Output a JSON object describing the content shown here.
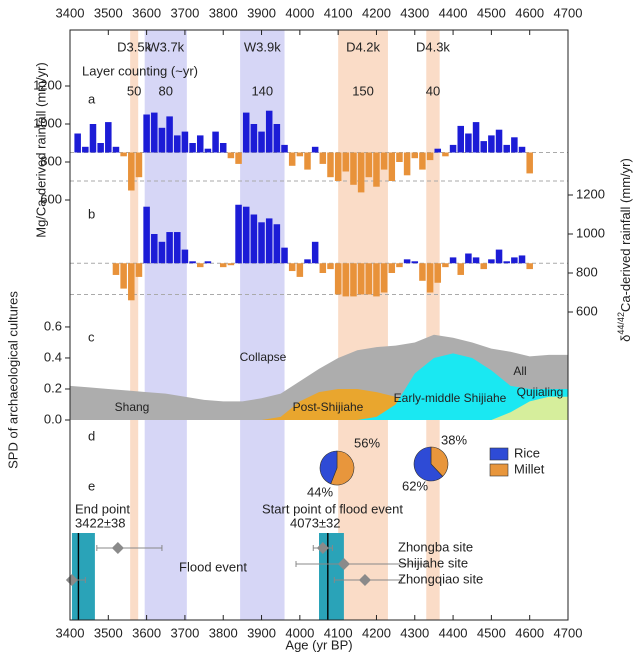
{
  "chart_data": {
    "type": "stacked-panels",
    "x_label": "Age (yr BP)",
    "xlim": [
      3400,
      4700
    ],
    "xticks": [
      3400,
      3500,
      3600,
      3700,
      3800,
      3900,
      4000,
      4100,
      4200,
      4300,
      4400,
      4500,
      4600,
      4700
    ],
    "bands": [
      {
        "label": "D3.5k",
        "range": [
          3557,
          3578
        ],
        "color": "#f9d6bd",
        "label_color": "#e8923a"
      },
      {
        "label": "W3.7k",
        "range": [
          3595,
          3705
        ],
        "color": "#cfcff5",
        "label_color": "#4a4acb"
      },
      {
        "label": "W3.9k",
        "range": [
          3844,
          3960
        ],
        "color": "#cfcff5",
        "label_color": "#4a4acb"
      },
      {
        "label": "D4.2k",
        "range": [
          4100,
          4230
        ],
        "color": "#f9d6bd",
        "label_color": "#e8923a"
      },
      {
        "label": "D4.3k",
        "range": [
          4330,
          4365
        ],
        "color": "#f9d6bd",
        "label_color": "#e8923a"
      }
    ],
    "layer_counting": {
      "title": "Layer counting (~yr)",
      "counts": [
        50,
        80,
        140,
        150,
        40
      ]
    },
    "panels": [
      {
        "type": "bar",
        "label": "a",
        "axis_side": "left",
        "y_label": "Mg/Ca-derived rainfall (mm/yr)",
        "ylim": [
          520,
          1340
        ],
        "yticks": [
          600,
          800,
          1000,
          1200
        ],
        "reference_lines": [
          850,
          700
        ],
        "color_above": "#1c1cd6",
        "color_below": "#e8923a",
        "x": [
          3420,
          3440,
          3460,
          3480,
          3500,
          3520,
          3540,
          3560,
          3580,
          3600,
          3620,
          3640,
          3660,
          3680,
          3700,
          3720,
          3740,
          3760,
          3780,
          3800,
          3820,
          3840,
          3860,
          3880,
          3900,
          3920,
          3940,
          3960,
          3980,
          4000,
          4020,
          4040,
          4060,
          4080,
          4100,
          4120,
          4140,
          4160,
          4180,
          4200,
          4220,
          4240,
          4260,
          4280,
          4300,
          4320,
          4340,
          4360,
          4380,
          4400,
          4420,
          4440,
          4460,
          4480,
          4500,
          4520,
          4540,
          4560,
          4580,
          4600
        ],
        "values": [
          950,
          880,
          1000,
          900,
          1010,
          880,
          830,
          650,
          720,
          1050,
          1060,
          980,
          1040,
          940,
          960,
          900,
          940,
          870,
          960,
          900,
          820,
          790,
          1060,
          1000,
          960,
          1070,
          1000,
          890,
          780,
          830,
          760,
          880,
          790,
          720,
          700,
          750,
          680,
          640,
          720,
          670,
          760,
          700,
          800,
          730,
          820,
          760,
          810,
          870,
          830,
          890,
          990,
          950,
          1010,
          910,
          940,
          970,
          890,
          930,
          880,
          740
        ]
      },
      {
        "type": "bar",
        "label": "b",
        "axis_side": "right",
        "y_label": {
          "prefix": "δ",
          "sup": "44/42",
          "text": "Ca-derived rainfall (mm/yr)"
        },
        "ylim": [
          520,
          1300
        ],
        "yticks": [
          600,
          800,
          1000,
          1200
        ],
        "reference_lines": [
          850,
          690
        ],
        "color_above": "#1c1cd6",
        "color_below": "#e8923a",
        "x": [
          3520,
          3540,
          3560,
          3580,
          3600,
          3620,
          3640,
          3660,
          3680,
          3700,
          3720,
          3740,
          3760,
          3780,
          3800,
          3820,
          3840,
          3860,
          3880,
          3900,
          3920,
          3940,
          3960,
          3980,
          4000,
          4020,
          4040,
          4060,
          4080,
          4100,
          4120,
          4140,
          4160,
          4180,
          4200,
          4220,
          4240,
          4260,
          4280,
          4300,
          4320,
          4340,
          4360,
          4380,
          4400,
          4420,
          4440,
          4460,
          4480,
          4500,
          4520,
          4540,
          4560,
          4580,
          4600
        ],
        "values": [
          790,
          720,
          660,
          780,
          1140,
          1000,
          960,
          1010,
          1010,
          920,
          860,
          830,
          860,
          850,
          830,
          840,
          1150,
          1140,
          1100,
          1060,
          1080,
          1050,
          930,
          810,
          780,
          870,
          960,
          800,
          820,
          690,
          680,
          680,
          690,
          690,
          680,
          700,
          800,
          830,
          870,
          860,
          760,
          700,
          750,
          830,
          880,
          790,
          900,
          880,
          820,
          870,
          920,
          860,
          880,
          890,
          820
        ]
      },
      {
        "type": "area",
        "label": "c",
        "axis_side": "left",
        "y_label": "SPD of archaeological cultures",
        "ylim": [
          0,
          0.65
        ],
        "yticks": [
          {
            "value": 0,
            "label": "0.0"
          },
          0.2,
          0.4,
          0.6
        ],
        "x": [
          3400,
          3450,
          3500,
          3550,
          3600,
          3650,
          3700,
          3750,
          3800,
          3850,
          3900,
          3950,
          4000,
          4050,
          4100,
          4150,
          4200,
          4250,
          4300,
          4350,
          4400,
          4450,
          4500,
          4550,
          4600,
          4650,
          4700
        ],
        "series": [
          {
            "name": "All",
            "color": "#adadad",
            "values": [
              0.22,
              0.21,
              0.2,
              0.19,
              0.18,
              0.17,
              0.15,
              0.13,
              0.12,
              0.12,
              0.14,
              0.17,
              0.25,
              0.33,
              0.4,
              0.45,
              0.47,
              0.48,
              0.5,
              0.55,
              0.53,
              0.5,
              0.46,
              0.44,
              0.41,
              0.42,
              0.42
            ]
          },
          {
            "name": "Post-Shijiahe",
            "color": "#e9a62e",
            "values": [
              0,
              0,
              0,
              0,
              0,
              0,
              0,
              0,
              0,
              0,
              0,
              0.02,
              0.12,
              0.18,
              0.2,
              0.2,
              0.18,
              0.15,
              0.08,
              0.02,
              0,
              0,
              0,
              0,
              0,
              0,
              0
            ]
          },
          {
            "name": "Early-middle Shijiahe",
            "color": "#1ae8f2",
            "values": [
              0,
              0,
              0,
              0,
              0,
              0,
              0,
              0,
              0,
              0,
              0,
              0,
              0,
              0,
              0,
              0,
              0.02,
              0.1,
              0.3,
              0.4,
              0.43,
              0.4,
              0.32,
              0.22,
              0.2,
              0.2,
              0.2
            ]
          },
          {
            "name": "Qujialing",
            "color": "#d6ee9c",
            "values": [
              0,
              0,
              0,
              0,
              0,
              0,
              0,
              0,
              0,
              0,
              0,
              0,
              0,
              0,
              0,
              0,
              0,
              0,
              0,
              0,
              0,
              0,
              0,
              0.05,
              0.12,
              0.15,
              0.15
            ]
          }
        ],
        "annotations": [
          {
            "text": "Shang",
            "color": "#222222"
          },
          {
            "text": "Collapse",
            "color": "#d62020"
          }
        ]
      },
      {
        "type": "pie",
        "label": "d",
        "series": [
          {
            "name": "Rice",
            "color": "#2e4bd6"
          },
          {
            "name": "Millet",
            "color": "#e8963c"
          }
        ],
        "pies": [
          {
            "values": [
              44,
              56
            ],
            "value_labels": [
              "44%",
              "56%"
            ]
          },
          {
            "values": [
              62,
              38
            ],
            "value_labels": [
              "62%",
              "38%"
            ]
          }
        ]
      },
      {
        "type": "range",
        "label": "e",
        "flood_label": "Flood event",
        "band_color": "#2aa3b8",
        "events": [
          {
            "label": "End point",
            "date_label": "3422±38",
            "value": 3422,
            "error": 38,
            "span": [
              3405,
              3465
            ]
          },
          {
            "label": "Start point of flood event",
            "date_label": "4073±32",
            "value": 4073,
            "error": 32,
            "span": [
              4050,
              4115
            ]
          }
        ],
        "sites": [
          {
            "name": null,
            "value": 3525,
            "range": [
              3470,
              3640
            ]
          },
          {
            "name": "Zhongba site",
            "value": 4060,
            "range": [
              4035,
              4085
            ]
          },
          {
            "name": "Shijiahe site",
            "value": 4115,
            "range": [
              3990,
              4330
            ]
          },
          {
            "name": "Zhongqiao site",
            "value": 4170,
            "range": [
              4090,
              4265
            ]
          },
          {
            "name": null,
            "value": 3405,
            "range": [
              3400,
              3440
            ]
          }
        ]
      }
    ]
  }
}
